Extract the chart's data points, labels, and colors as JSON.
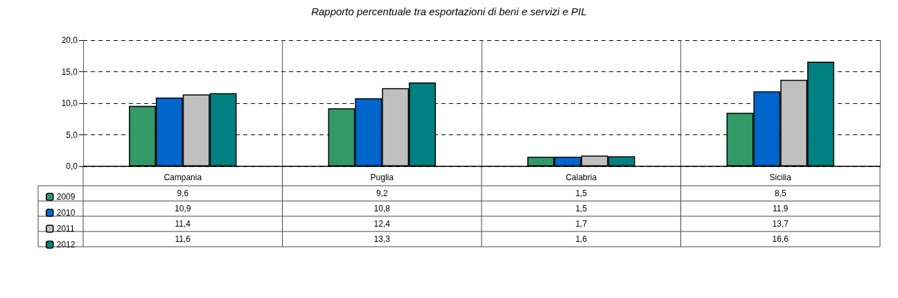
{
  "chart_data": {
    "type": "bar",
    "title": "Rapporto percentuale tra esportazioni di beni e servizi e PIL",
    "categories": [
      "Campania",
      "Puglia",
      "Calabria",
      "Sicilia"
    ],
    "series": [
      {
        "name": "2009",
        "color": "#339966",
        "values": [
          9.6,
          9.2,
          1.5,
          8.5
        ],
        "value_labels": [
          "9,6",
          "9,2",
          "1,5",
          "8,5"
        ]
      },
      {
        "name": "2010",
        "color": "#0066cc",
        "values": [
          10.9,
          10.8,
          1.5,
          11.9
        ],
        "value_labels": [
          "10,9",
          "10,8",
          "1,5",
          "11,9"
        ]
      },
      {
        "name": "2011",
        "color": "#c0c0c0",
        "values": [
          11.4,
          12.4,
          1.7,
          13.7
        ],
        "value_labels": [
          "11,4",
          "12,4",
          "1,7",
          "13,7"
        ]
      },
      {
        "name": "2012",
        "color": "#008080",
        "values": [
          11.6,
          13.3,
          1.6,
          16.6
        ],
        "value_labels": [
          "11,6",
          "13,3",
          "1,6",
          "16,6"
        ]
      }
    ],
    "ylim": [
      0,
      20
    ],
    "yticks": [
      {
        "value": 0,
        "label": "0,0"
      },
      {
        "value": 5,
        "label": "5,0"
      },
      {
        "value": 10,
        "label": "10,0"
      },
      {
        "value": 15,
        "label": "15,0"
      },
      {
        "value": 20,
        "label": "20,0"
      }
    ],
    "grid": true,
    "legend": "bottom left"
  }
}
